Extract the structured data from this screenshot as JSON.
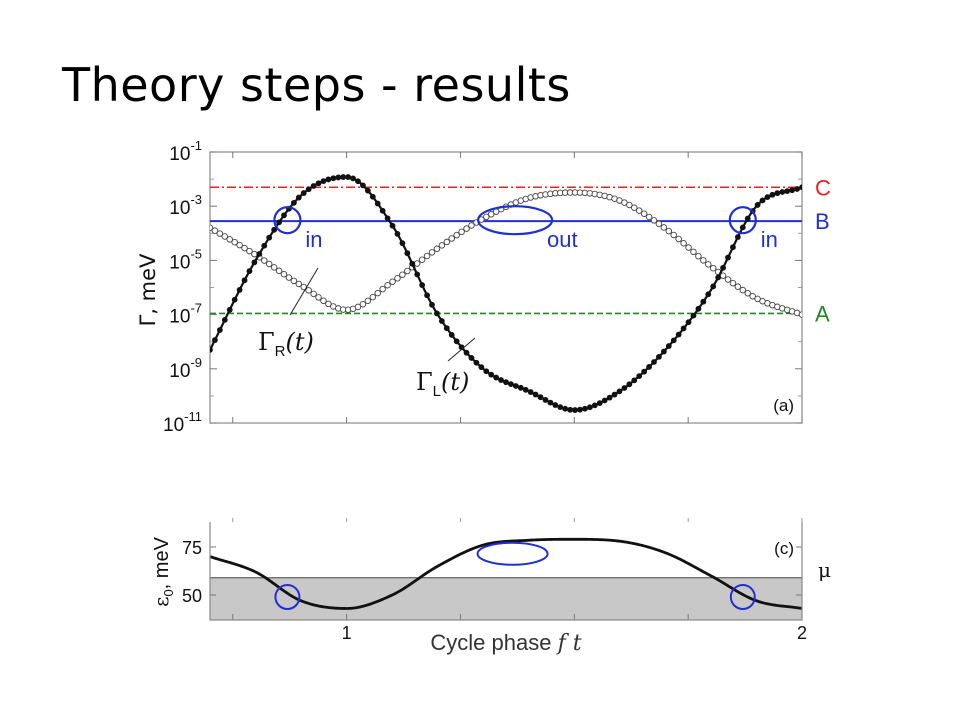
{
  "slide": {
    "title": "Theory steps - results"
  },
  "chart_data": [
    {
      "type": "line",
      "panel_label": "(a)",
      "ylabel": "Γ, meV",
      "yscale": "log",
      "ylim": [
        1e-11,
        0.1
      ],
      "xlim": [
        0.7,
        2.0
      ],
      "y_ticks": [
        {
          "base": "10",
          "exp": "-1"
        },
        {
          "base": "10",
          "exp": "-3"
        },
        {
          "base": "10",
          "exp": "-5"
        },
        {
          "base": "10",
          "exp": "-7"
        },
        {
          "base": "10",
          "exp": "-9"
        },
        {
          "base": "10",
          "exp": "-11"
        }
      ],
      "y_tick_values": [
        0.1,
        0.001,
        1e-05,
        1e-07,
        1e-09,
        1e-11
      ],
      "reference_lines": [
        {
          "label": "C",
          "value": 0.005,
          "color": "#e8221d",
          "style": "dashdot"
        },
        {
          "label": "B",
          "value": 0.00028,
          "color": "#1f2fd6",
          "style": "solid"
        },
        {
          "label": "A",
          "value": 1.1e-07,
          "color": "#1f8a1f",
          "style": "dashed"
        }
      ],
      "series": [
        {
          "name": "Γ_R(t)",
          "label_main": "Γ",
          "label_sub": "R",
          "label_arg": "(t)",
          "marker": "open-circle",
          "x": [
            0.7,
            0.8,
            0.9,
            1.0,
            1.1,
            1.2,
            1.3,
            1.4,
            1.5,
            1.6,
            1.7,
            1.8,
            1.9,
            2.0
          ],
          "y": [
            0.00016,
            1.6e-05,
            1.2e-06,
            1.5e-07,
            1.6e-06,
            2.8e-05,
            0.00035,
            0.002,
            0.0032,
            0.0016,
            0.00015,
            6e-06,
            4e-07,
            1e-07
          ]
        },
        {
          "name": "Γ_L(t)",
          "label_main": "Γ",
          "label_sub": "L",
          "label_arg": "(t)",
          "marker": "filled-circle",
          "x": [
            0.7,
            0.8,
            0.9,
            1.0,
            1.1,
            1.2,
            1.3,
            1.4,
            1.5,
            1.6,
            1.7,
            1.8,
            1.9,
            2.0
          ],
          "y": [
            5e-09,
            1e-05,
            0.0025,
            0.012,
            0.0002,
            1e-07,
            1e-09,
            1.5e-10,
            3e-11,
            1.5e-10,
            5e-09,
            8e-07,
            0.001,
            0.005
          ]
        }
      ],
      "annotations": [
        {
          "text": "in",
          "x": 0.87,
          "y": 0.00028
        },
        {
          "text": "out",
          "x": 1.36,
          "y": 0.00028
        },
        {
          "text": "in",
          "x": 1.87,
          "y": 0.00028
        }
      ]
    },
    {
      "type": "line",
      "panel_label": "(c)",
      "ylabel_main": "ε",
      "ylabel_sub": "0",
      "ylabel_rest": ", meV",
      "xlabel_main": "Cycle phase ",
      "xlabel_var": "f t",
      "xlim": [
        0.7,
        2.0
      ],
      "ylim": [
        37,
        88
      ],
      "x_ticks": [
        1,
        2
      ],
      "y_ticks": [
        50,
        75
      ],
      "mu_label": "μ",
      "mu_value": 59,
      "series": [
        {
          "name": "ε0(t)",
          "x": [
            0.7,
            0.8,
            0.9,
            1.0,
            1.1,
            1.2,
            1.3,
            1.4,
            1.5,
            1.6,
            1.7,
            1.8,
            1.9,
            2.0
          ],
          "y": [
            70,
            62,
            47,
            43,
            50,
            65,
            76,
            78.5,
            79,
            78,
            72,
            60,
            47,
            43
          ]
        }
      ],
      "annotations": [
        {
          "shape": "circle",
          "x": 0.87,
          "y": 50
        },
        {
          "shape": "ellipse",
          "x": 1.36,
          "y": 72
        },
        {
          "shape": "circle",
          "x": 1.87,
          "y": 50
        }
      ]
    }
  ]
}
